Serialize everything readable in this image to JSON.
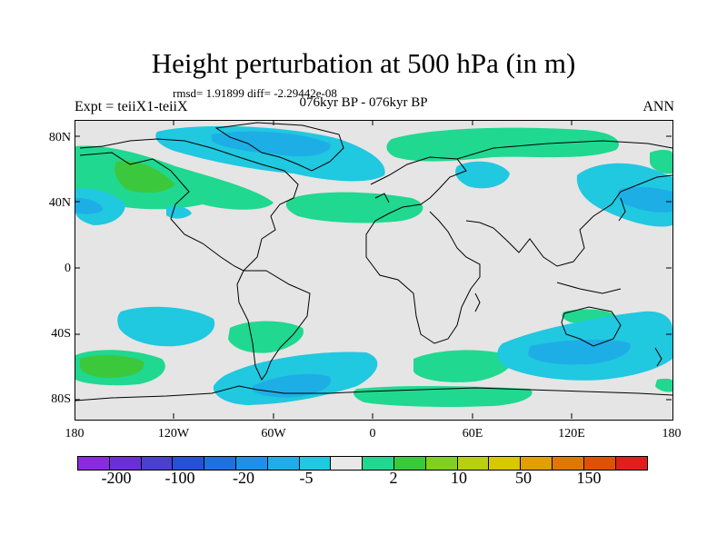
{
  "title": "Height perturbation at 500 hPa (in m)",
  "stats": "rmsd= 1.91899 diff= -2.29442e-08",
  "expt": "Expt = teiiX1-teiiX",
  "period": "076kyr BP - 076kyr BP",
  "season": "ANN",
  "axes": {
    "lat_labels": [
      "80N",
      "40N",
      "0",
      "40S",
      "80S"
    ],
    "lon_labels": [
      "180",
      "120W",
      "60W",
      "0",
      "60E",
      "120E",
      "180"
    ]
  },
  "colorbar": {
    "colors": [
      "#8a2be2",
      "#6a2fd8",
      "#4b3fd0",
      "#2650d8",
      "#1f6fe0",
      "#1e90e8",
      "#1eaee6",
      "#20c8e0",
      "#e8e8e8",
      "#20d890",
      "#3cc83c",
      "#80d020",
      "#b8d010",
      "#d8c800",
      "#e0a000",
      "#e07800",
      "#e05000",
      "#e01e1e"
    ],
    "labels": [
      "-200",
      "-100",
      "-20",
      "-5",
      "2",
      "10",
      "50",
      "150"
    ]
  },
  "field_colors": {
    "light_blue": "#20c8e0",
    "blue": "#1eaee6",
    "deep_blue": "#1e90e8",
    "light_green": "#20d890",
    "green": "#3cc83c",
    "background": "#e5e5e5"
  }
}
